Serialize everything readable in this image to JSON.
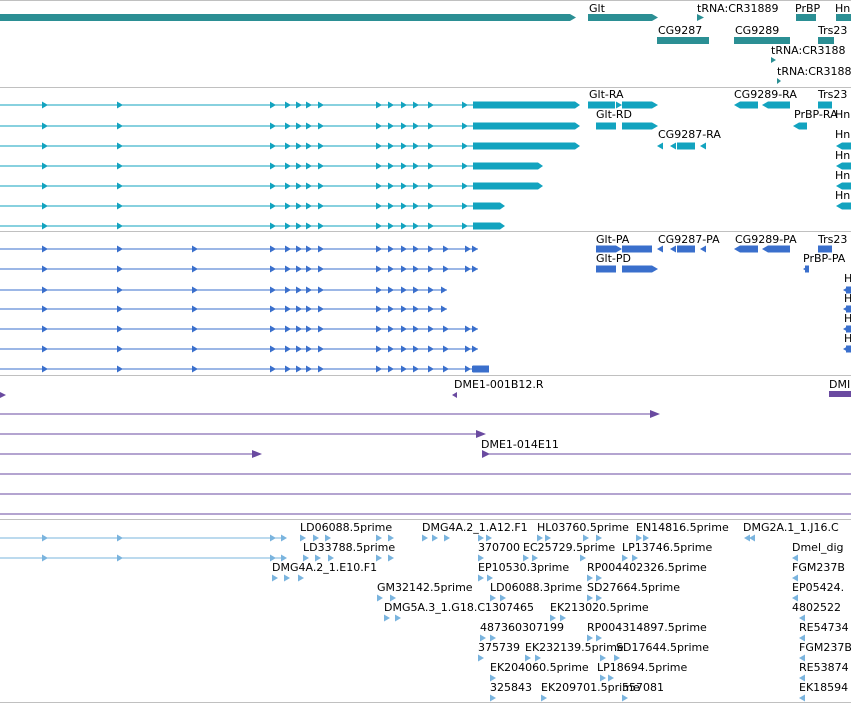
{
  "colors": {
    "gene": "#2b8f94",
    "flybase": "#12a3bf",
    "refseq": "#3a6fcc",
    "clone": "#6a4aa0",
    "est": "#7ab4de",
    "divider": "#c0c0c0"
  },
  "tracks": {
    "genes": {
      "labels": [
        "Glt",
        "tRNA:CR31889",
        "PrBP",
        "Hn",
        "CG9287",
        "CG9289",
        "Trs23",
        "tRNA:CR3188",
        "tRNA:CR3188"
      ]
    },
    "flybase_transcripts": {
      "labels": [
        "Glt-RA",
        "CG9289-RA",
        "Trs23",
        "Glt-RD",
        "PrBP-RA",
        "Hn",
        "CG9287-RA",
        "Hn",
        "Hn",
        "Hn",
        "Hn"
      ]
    },
    "refseq_transcripts": {
      "labels": [
        "Glt-PA",
        "CG9287-PA",
        "CG9289-PA",
        "Trs23",
        "Glt-PD",
        "PrBP-PA",
        "H",
        "H",
        "H",
        "H"
      ]
    },
    "clones": {
      "labels": [
        "DME1-001B12.R",
        "DMI",
        "DME1-014E11"
      ]
    },
    "ests": {
      "labels": [
        "LD06088.5prime",
        "DMG4A.2_1.A12.F1",
        "HL03760.5prime",
        "EN14816.5prime",
        "DMG2A.1_1.J16.C",
        "LD33788.5prime",
        "370700",
        "EC25729.5prime",
        "LP13746.5prime",
        "Dmel_dig",
        "DMG4A.2_1.E10.F1",
        "EP10530.3prime",
        "RP004402326.5prime",
        "FGM237B",
        "GM32142.5prime",
        "LD06088.3prime",
        "SD27664.5prime",
        "EP05424.",
        "DMG5A.3_1.G18.C1307465",
        "EK213020.5prime",
        "4802522",
        "487360307199",
        "RP004314897.5prime",
        "RE54734",
        "375739",
        "EK232139.5prime",
        "SD17644.5prime",
        "FGM237B",
        "EK204060.5prime",
        "LP18694.5prime",
        "RE53874",
        "325843",
        "EK209701.5prime",
        "557081",
        "EK18594"
      ]
    }
  }
}
